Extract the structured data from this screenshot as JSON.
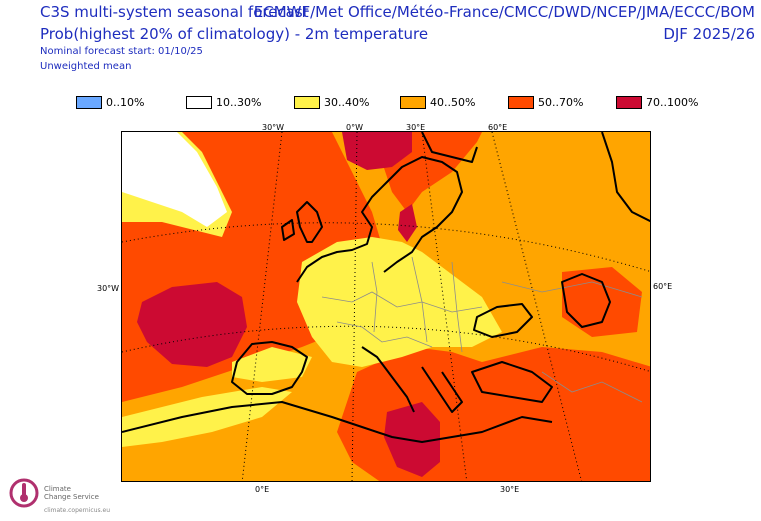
{
  "header": {
    "title_left": "C3S multi-system seasonal forecast",
    "subtitle_left": "Prob(highest 20% of climatology) - 2m temperature",
    "forecast_start": "Nominal forecast start: 01/10/25",
    "weighting": "Unweighted mean",
    "centres": "ECMWF/Met Office/Météo-France/CMCC/DWD/NCEP/JMA/ECCC/BOM",
    "season": "DJF 2025/26"
  },
  "legend": [
    {
      "label": "0..10%",
      "color": "#6aa8ff"
    },
    {
      "label": "10..30%",
      "color": "#ffffff"
    },
    {
      "label": "30..40%",
      "color": "#fff24a"
    },
    {
      "label": "40..50%",
      "color": "#ffa500"
    },
    {
      "label": "50..70%",
      "color": "#ff4a00"
    },
    {
      "label": "70..100%",
      "color": "#cc0a32"
    }
  ],
  "map": {
    "lon_labels_top": [
      "30°W",
      "0°W",
      "30°E",
      "60°E"
    ],
    "lon_labels_bottom": [
      "0°E",
      "30°E"
    ],
    "lat_label_left": "30°W",
    "lat_label_right": "60°E"
  },
  "footer": {
    "org_line1": "Climate",
    "org_line2": "Change Service",
    "url": "climate.copernicus.eu",
    "logo_icon": "copernicus-climate-logo-icon"
  }
}
